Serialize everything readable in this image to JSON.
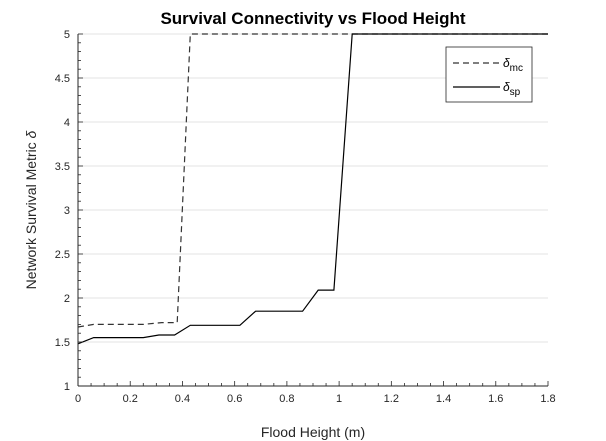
{
  "chart_data": {
    "type": "line",
    "title": "Survival Connectivity vs Flood Height",
    "xlabel": "Flood Height (m)",
    "ylabel_text": "Network Survival Metric ",
    "ylabel_symbol": "δ",
    "xlim": [
      0,
      1.8
    ],
    "ylim": [
      1,
      5
    ],
    "xticks": [
      "0",
      "0.2",
      "0.4",
      "0.6",
      "0.8",
      "1",
      "1.2",
      "1.4",
      "1.6",
      "1.8"
    ],
    "yticks": [
      "1",
      "1.5",
      "2",
      "2.5",
      "3",
      "3.5",
      "4",
      "4.5",
      "5"
    ],
    "grid": true,
    "legend_position": "top-right",
    "series": [
      {
        "symbol": "δ",
        "subscript": "mc",
        "line_style": "dashed",
        "color": "#333333",
        "x": [
          0,
          0.06,
          0.25,
          0.32,
          0.37,
          0.38,
          0.43,
          1.8
        ],
        "y": [
          1.67,
          1.7,
          1.7,
          1.72,
          1.72,
          1.72,
          5.0,
          5.0
        ]
      },
      {
        "symbol": "δ",
        "subscript": "sp",
        "line_style": "solid",
        "color": "#000000",
        "x": [
          0,
          0.06,
          0.25,
          0.31,
          0.37,
          0.43,
          0.62,
          0.68,
          0.86,
          0.92,
          0.98,
          1.05,
          1.8
        ],
        "y": [
          1.48,
          1.55,
          1.55,
          1.58,
          1.58,
          1.69,
          1.69,
          1.85,
          1.85,
          2.09,
          2.09,
          5.0,
          5.0
        ]
      }
    ]
  }
}
